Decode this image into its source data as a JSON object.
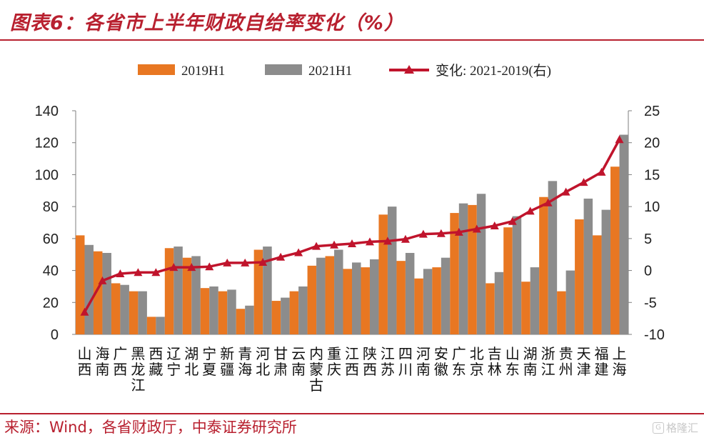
{
  "title": "图表6：各省市上半年财政自给率变化（%）",
  "source": "来源：Wind，各省财政厅，中泰证券研究所",
  "watermark": "格隆汇",
  "colors": {
    "s2019": "#e87722",
    "s2021": "#8c8c8c",
    "change": "#c0142c",
    "accent": "#b8202f"
  },
  "chart_data": {
    "type": "bar",
    "categories": [
      "山西",
      "海南",
      "广西",
      "黑龙江",
      "西藏",
      "辽宁",
      "湖北",
      "宁夏",
      "新疆",
      "青海",
      "河北",
      "甘肃",
      "云南",
      "内蒙古",
      "重庆",
      "江西",
      "陕西",
      "江苏",
      "四川",
      "河南",
      "安徽",
      "广东",
      "北京",
      "吉林",
      "山东",
      "湖南",
      "浙江",
      "贵州",
      "天津",
      "福建",
      "上海"
    ],
    "series": [
      {
        "name": "2019H1",
        "axis": "left",
        "values": [
          62,
          52,
          32,
          27,
          11,
          54,
          48,
          29,
          27,
          16,
          53,
          21,
          27,
          43,
          49,
          41,
          42,
          75,
          46,
          35,
          42,
          76,
          81,
          32,
          67,
          33,
          86,
          27,
          72,
          62,
          105
        ]
      },
      {
        "name": "2021H1",
        "axis": "left",
        "values": [
          56,
          51,
          31,
          27,
          11,
          55,
          49,
          30,
          28,
          18,
          55,
          23,
          30,
          48,
          53,
          45,
          47,
          80,
          51,
          41,
          48,
          82,
          88,
          39,
          74,
          42,
          96,
          40,
          85,
          78,
          125
        ]
      },
      {
        "name": "变化: 2021-2019(右)",
        "axis": "right",
        "type": "line",
        "values": [
          -6.5,
          -1.6,
          -0.5,
          -0.3,
          -0.3,
          0.5,
          0.5,
          0.6,
          1.2,
          1.2,
          1.3,
          2.1,
          2.8,
          3.8,
          4.0,
          4.2,
          4.5,
          4.6,
          4.9,
          5.7,
          5.8,
          6.0,
          6.5,
          7.0,
          7.7,
          9.3,
          10.6,
          12.3,
          13.8,
          15.4,
          20.5
        ]
      }
    ],
    "yLeft": {
      "min": 0,
      "max": 140,
      "ticks": [
        "0",
        "20",
        "40",
        "60",
        "80",
        "100",
        "120",
        "140"
      ]
    },
    "yRight": {
      "min": -10,
      "max": 25,
      "ticks": [
        "-10",
        "-5",
        "0",
        "5",
        "10",
        "15",
        "20",
        "25"
      ]
    },
    "legend_placement": "top",
    "grid": false
  }
}
